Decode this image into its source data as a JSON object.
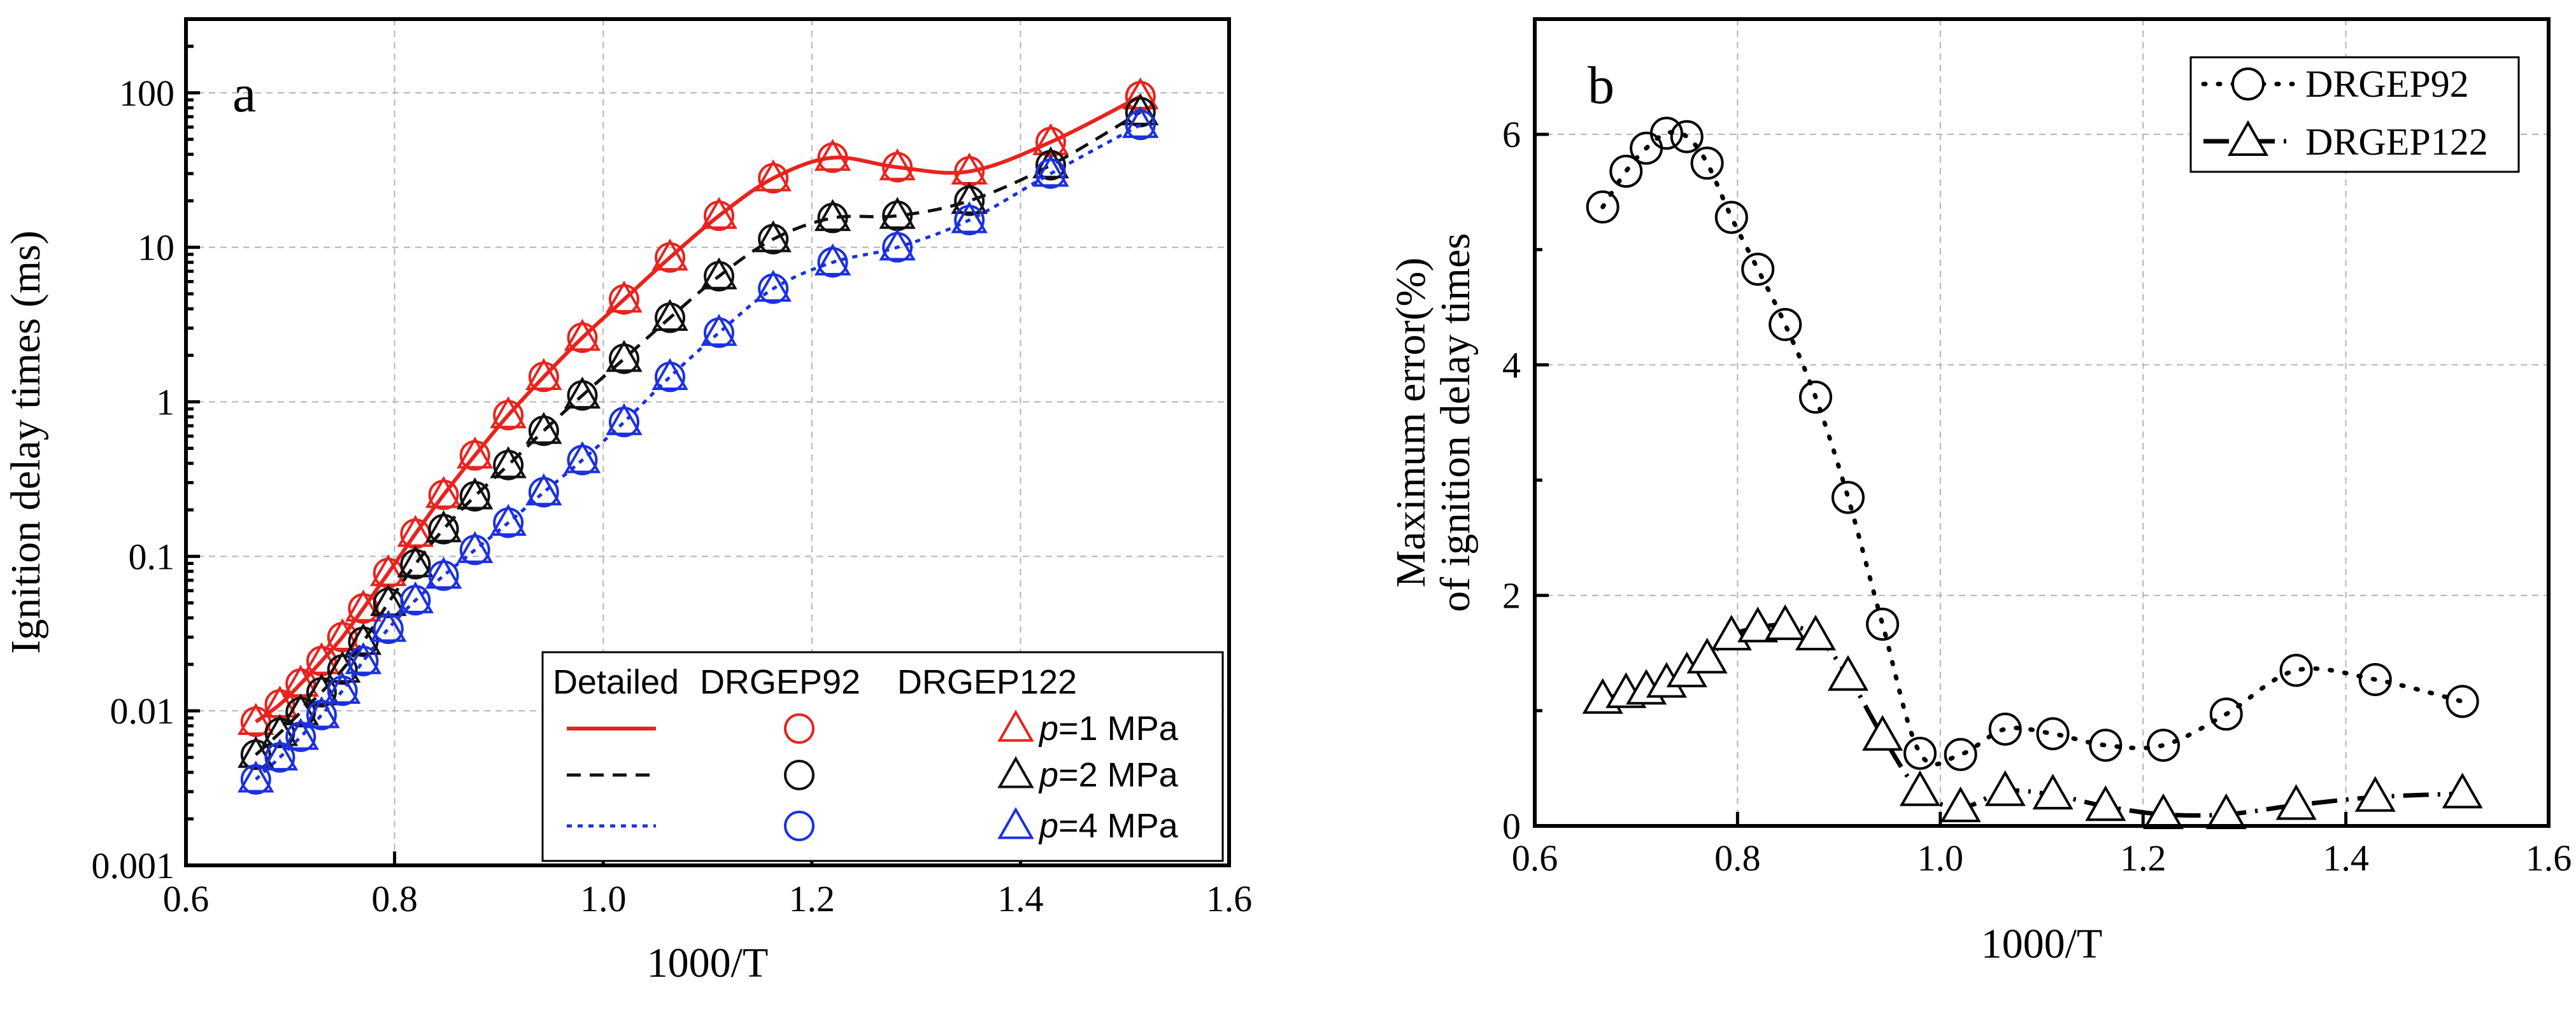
{
  "chart_data": [
    {
      "type": "line",
      "panel_label": "a",
      "xlabel": "1000/T",
      "ylabel": "Ignition delay times (ms)",
      "yscale": "log",
      "xlim": [
        0.6,
        1.6
      ],
      "ylim": [
        0.001,
        300
      ],
      "x_ticks": [
        "0.6",
        "0.8",
        "1.0",
        "1.2",
        "1.4",
        "1.6"
      ],
      "y_ticks": [
        "0.001",
        "0.01",
        "0.1",
        "1",
        "10",
        "100"
      ],
      "grid": true,
      "legend_position": "bottom-right",
      "legend": {
        "col_headers": [
          "Detailed",
          "DRGEP92",
          "DRGEP122"
        ],
        "row_p_label": "p",
        "rows": [
          {
            "pressure_label": "=1 MPa",
            "color": "#e8231e",
            "dash": "solid"
          },
          {
            "pressure_label": "=2 MPa",
            "color": "#111111",
            "dash": "dashed"
          },
          {
            "pressure_label": "=4 MPa",
            "color": "#1c30e0",
            "dash": "dotted"
          }
        ]
      },
      "x": [
        0.667,
        0.69,
        0.71,
        0.73,
        0.75,
        0.77,
        0.794,
        0.82,
        0.847,
        0.877,
        0.909,
        0.943,
        0.98,
        1.02,
        1.064,
        1.111,
        1.163,
        1.22,
        1.282,
        1.351,
        1.429,
        1.515
      ],
      "series": [
        {
          "name": "Detailed p=1 MPa",
          "pressure": "1 MPa",
          "color": "#e8231e",
          "values": [
            0.0085,
            0.011,
            0.015,
            0.021,
            0.03,
            0.046,
            0.078,
            0.14,
            0.25,
            0.45,
            0.82,
            1.45,
            2.6,
            4.6,
            8.6,
            16,
            28,
            38,
            33,
            31,
            48,
            95
          ]
        },
        {
          "name": "Detailed p=2 MPa",
          "pressure": "2 MPa",
          "color": "#111111",
          "values": [
            0.0052,
            0.0072,
            0.0098,
            0.0132,
            0.0185,
            0.028,
            0.05,
            0.089,
            0.15,
            0.245,
            0.39,
            0.65,
            1.1,
            1.9,
            3.5,
            6.5,
            11.3,
            15.5,
            16,
            20,
            34,
            75
          ]
        },
        {
          "name": "Detailed p=4 MPa",
          "pressure": "4 MPa",
          "color": "#1c30e0",
          "values": [
            0.0036,
            0.005,
            0.0068,
            0.0094,
            0.0135,
            0.021,
            0.034,
            0.052,
            0.075,
            0.11,
            0.165,
            0.26,
            0.42,
            0.74,
            1.45,
            2.8,
            5.4,
            8,
            10,
            15,
            30,
            62
          ]
        }
      ]
    },
    {
      "type": "line",
      "panel_label": "b",
      "xlabel": "1000/T",
      "ylabel_line1": "Maximum error(%)",
      "ylabel_line2": "of ignition delay times",
      "xlim": [
        0.6,
        1.6
      ],
      "ylim": [
        0,
        7
      ],
      "x_ticks": [
        "0.6",
        "0.8",
        "1.0",
        "1.2",
        "1.4",
        "1.6"
      ],
      "y_ticks": [
        "0",
        "2",
        "4",
        "6"
      ],
      "grid": true,
      "legend_position": "top-right",
      "series": [
        {
          "name": "DRGEP92",
          "marker": "circle",
          "x": [
            0.667,
            0.69,
            0.71,
            0.73,
            0.75,
            0.77,
            0.794,
            0.82,
            0.847,
            0.877,
            0.909,
            0.943,
            0.98,
            1.02,
            1.064,
            1.111,
            1.163,
            1.22,
            1.282,
            1.351,
            1.429,
            1.515
          ],
          "values": [
            5.37,
            5.68,
            5.88,
            6.01,
            5.98,
            5.75,
            5.28,
            4.83,
            4.35,
            3.72,
            2.85,
            1.75,
            0.63,
            0.62,
            0.84,
            0.8,
            0.7,
            0.7,
            0.97,
            1.35,
            1.27,
            1.08
          ]
        },
        {
          "name": "DRGEP122",
          "marker": "triangle",
          "x": [
            0.667,
            0.69,
            0.71,
            0.73,
            0.75,
            0.77,
            0.794,
            0.82,
            0.847,
            0.877,
            0.909,
            0.943,
            0.98,
            1.02,
            1.064,
            1.111,
            1.163,
            1.22,
            1.282,
            1.351,
            1.429,
            1.515
          ],
          "values": [
            1.1,
            1.15,
            1.18,
            1.24,
            1.33,
            1.45,
            1.65,
            1.72,
            1.74,
            1.65,
            1.3,
            0.78,
            0.3,
            0.16,
            0.3,
            0.27,
            0.17,
            0.1,
            0.1,
            0.18,
            0.25,
            0.28
          ]
        }
      ]
    }
  ]
}
